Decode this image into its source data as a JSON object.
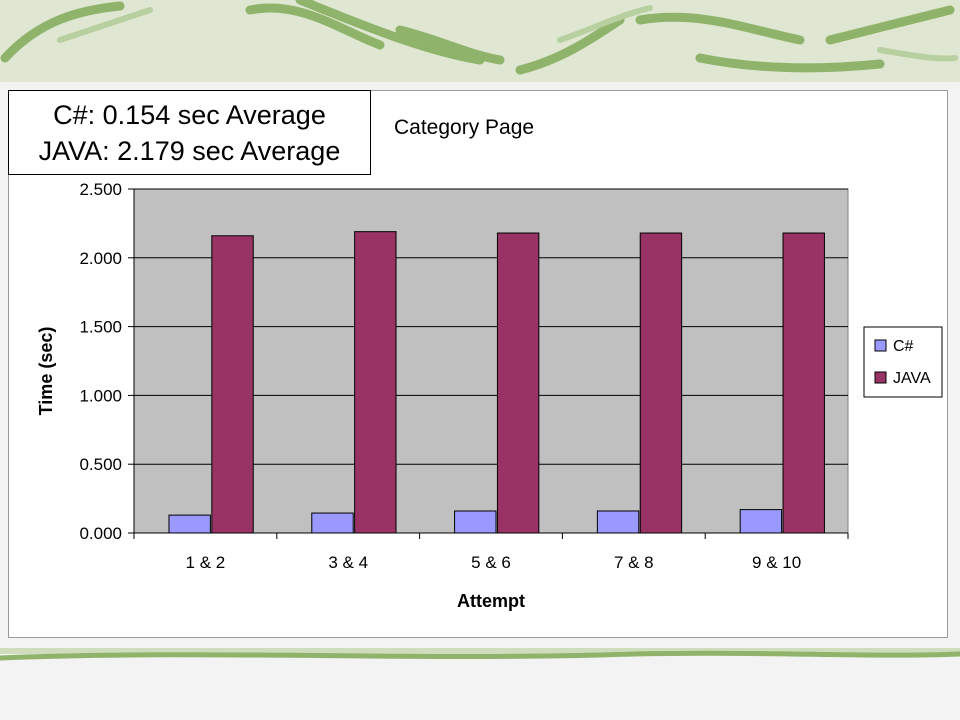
{
  "callout": {
    "line1": "C#: 0.154 sec Average",
    "line2": "JAVA: 2.179 sec Average"
  },
  "colors": {
    "csharp": "#9999ff",
    "java": "#993366",
    "plot_area": "#c0c0c0",
    "slide_background": "#f3f3f3",
    "decoration": "#8fb36a"
  },
  "chart_data": {
    "type": "bar",
    "title": "Category Page",
    "xlabel": "Attempt",
    "ylabel": "Time (sec)",
    "categories": [
      "1 & 2",
      "3 & 4",
      "5 & 6",
      "7 & 8",
      "9 & 10"
    ],
    "series": [
      {
        "name": "C#",
        "values": [
          0.13,
          0.145,
          0.16,
          0.16,
          0.17
        ]
      },
      {
        "name": "JAVA",
        "values": [
          2.16,
          2.19,
          2.18,
          2.18,
          2.18
        ]
      }
    ],
    "ylim": [
      0,
      2.5
    ],
    "yticks": [
      "0.000",
      "0.500",
      "1.000",
      "1.500",
      "2.000",
      "2.500"
    ],
    "grid": true,
    "legend_position": "right"
  }
}
